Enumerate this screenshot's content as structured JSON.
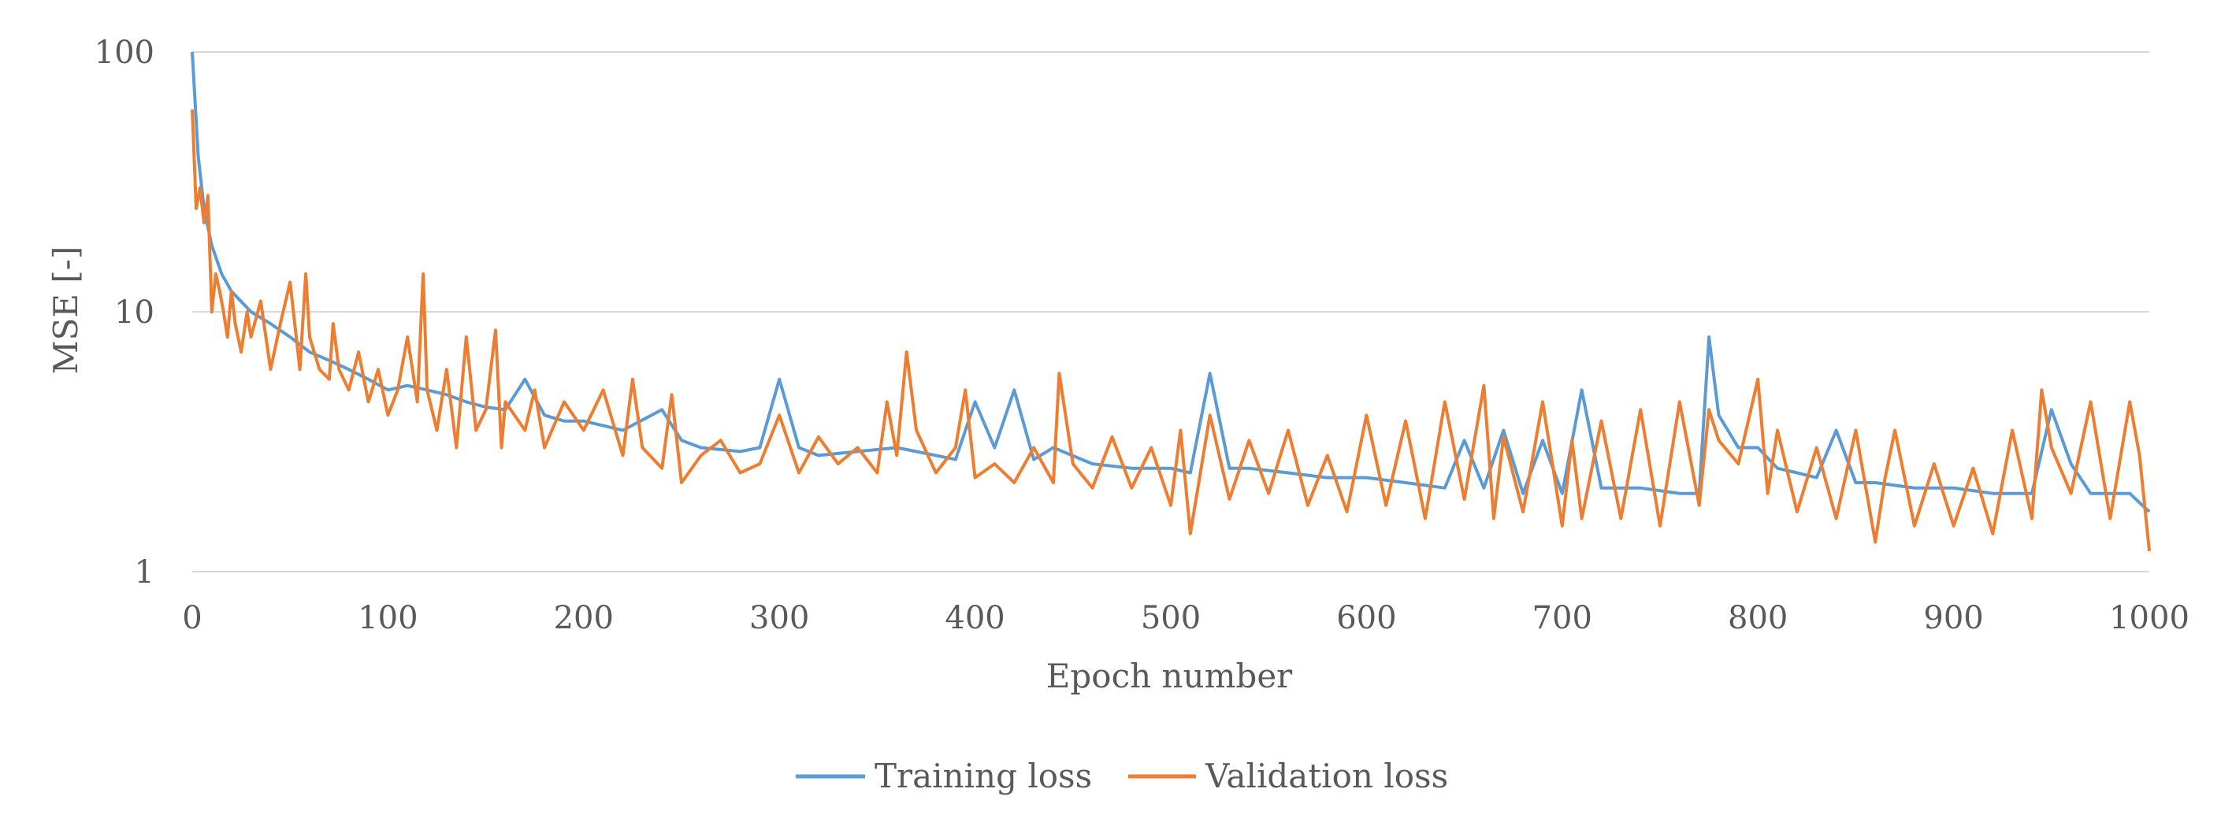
{
  "chart_data": {
    "type": "line",
    "title": "",
    "xlabel": "Epoch number",
    "ylabel": "MSE [-]",
    "x_range": [
      0,
      1000
    ],
    "x_ticks": [
      0,
      100,
      200,
      300,
      400,
      500,
      600,
      700,
      800,
      900,
      1000
    ],
    "x_tick_labels": [
      "0",
      "100",
      "200",
      "300",
      "400",
      "500",
      "600",
      "700",
      "800",
      "900",
      "1000"
    ],
    "y_scale": "log",
    "y_range": [
      1,
      100
    ],
    "y_ticks": [
      1,
      10,
      100
    ],
    "y_tick_labels": [
      "1",
      "10",
      "100"
    ],
    "grid": "horizontal major gridlines",
    "legend_position": "bottom-center",
    "colors": {
      "training": "#5B9BD5",
      "validation": "#ED7D31",
      "grid": "#D9D9D9",
      "text": "#595959"
    },
    "series": [
      {
        "name": "Training loss",
        "color": "#5B9BD5",
        "x": [
          0,
          3,
          6,
          10,
          15,
          20,
          30,
          40,
          50,
          60,
          70,
          80,
          90,
          100,
          110,
          120,
          130,
          140,
          150,
          160,
          170,
          180,
          190,
          200,
          220,
          240,
          250,
          260,
          280,
          290,
          300,
          310,
          320,
          340,
          360,
          380,
          390,
          400,
          410,
          420,
          430,
          440,
          460,
          480,
          500,
          510,
          520,
          530,
          540,
          560,
          580,
          600,
          620,
          640,
          650,
          660,
          670,
          680,
          690,
          700,
          710,
          720,
          740,
          760,
          770,
          775,
          780,
          790,
          800,
          810,
          820,
          830,
          840,
          850,
          860,
          880,
          900,
          920,
          940,
          950,
          960,
          970,
          980,
          990,
          1000
        ],
        "y": [
          100,
          40,
          25,
          18,
          14,
          12,
          10,
          9,
          8,
          7,
          6.5,
          6,
          5.5,
          5,
          5.2,
          5,
          4.8,
          4.5,
          4.3,
          4.2,
          5.5,
          4,
          3.8,
          3.8,
          3.5,
          4.2,
          3.2,
          3,
          2.9,
          3,
          5.5,
          3,
          2.8,
          2.9,
          3,
          2.8,
          2.7,
          4.5,
          3,
          5,
          2.7,
          3,
          2.6,
          2.5,
          2.5,
          2.4,
          5.8,
          2.5,
          2.5,
          2.4,
          2.3,
          2.3,
          2.2,
          2.1,
          3.2,
          2.1,
          3.5,
          2,
          3.2,
          2,
          5,
          2.1,
          2.1,
          2,
          2,
          8,
          4,
          3,
          3,
          2.5,
          2.4,
          2.3,
          3.5,
          2.2,
          2.2,
          2.1,
          2.1,
          2,
          2,
          4.2,
          2.6,
          2,
          2,
          2,
          1.7
        ]
      },
      {
        "name": "Validation loss",
        "color": "#ED7D31",
        "x": [
          0,
          2,
          4,
          6,
          8,
          10,
          12,
          14,
          16,
          18,
          20,
          22,
          25,
          28,
          30,
          35,
          40,
          45,
          50,
          55,
          58,
          60,
          65,
          70,
          72,
          75,
          80,
          85,
          90,
          95,
          100,
          105,
          110,
          115,
          118,
          120,
          125,
          130,
          135,
          140,
          145,
          150,
          155,
          158,
          160,
          170,
          175,
          180,
          190,
          200,
          210,
          220,
          225,
          230,
          240,
          245,
          250,
          260,
          270,
          280,
          290,
          300,
          310,
          320,
          330,
          340,
          350,
          355,
          360,
          365,
          370,
          380,
          390,
          395,
          400,
          410,
          420,
          430,
          440,
          443,
          450,
          460,
          470,
          480,
          490,
          500,
          505,
          510,
          520,
          530,
          540,
          550,
          560,
          570,
          580,
          590,
          600,
          610,
          620,
          630,
          640,
          650,
          660,
          665,
          670,
          680,
          690,
          700,
          705,
          710,
          720,
          730,
          740,
          750,
          760,
          770,
          775,
          780,
          790,
          800,
          805,
          810,
          820,
          830,
          840,
          850,
          860,
          865,
          870,
          880,
          890,
          900,
          910,
          920,
          930,
          940,
          945,
          950,
          960,
          970,
          980,
          990,
          995,
          1000
        ],
        "y": [
          60,
          25,
          30,
          22,
          28,
          10,
          14,
          12,
          10,
          8,
          12,
          9,
          7,
          10,
          8,
          11,
          6,
          9,
          13,
          6,
          14,
          8,
          6,
          5.5,
          9,
          6,
          5,
          7,
          4.5,
          6,
          4,
          5,
          8,
          4.5,
          14,
          5,
          3.5,
          6,
          3,
          8,
          3.5,
          4.2,
          8.5,
          3,
          4.5,
          3.5,
          5,
          3,
          4.5,
          3.5,
          5,
          2.8,
          5.5,
          3,
          2.5,
          4.8,
          2.2,
          2.8,
          3.2,
          2.4,
          2.6,
          4,
          2.4,
          3.3,
          2.6,
          3,
          2.4,
          4.5,
          2.8,
          7,
          3.5,
          2.4,
          3,
          5,
          2.3,
          2.6,
          2.2,
          3,
          2.2,
          5.8,
          2.6,
          2.1,
          3.3,
          2.1,
          3,
          1.8,
          3.5,
          1.4,
          4,
          1.9,
          3.2,
          2,
          3.5,
          1.8,
          2.8,
          1.7,
          4,
          1.8,
          3.8,
          1.6,
          4.5,
          1.9,
          5.2,
          1.6,
          3.3,
          1.7,
          4.5,
          1.5,
          3.2,
          1.6,
          3.8,
          1.6,
          4.2,
          1.5,
          4.5,
          1.8,
          4.2,
          3.2,
          2.6,
          5.5,
          2,
          3.5,
          1.7,
          3,
          1.6,
          3.5,
          1.3,
          2.3,
          3.5,
          1.5,
          2.6,
          1.5,
          2.5,
          1.4,
          3.5,
          1.6,
          5,
          3,
          2,
          4.5,
          1.6,
          4.5,
          2.8,
          1.2
        ]
      }
    ]
  }
}
